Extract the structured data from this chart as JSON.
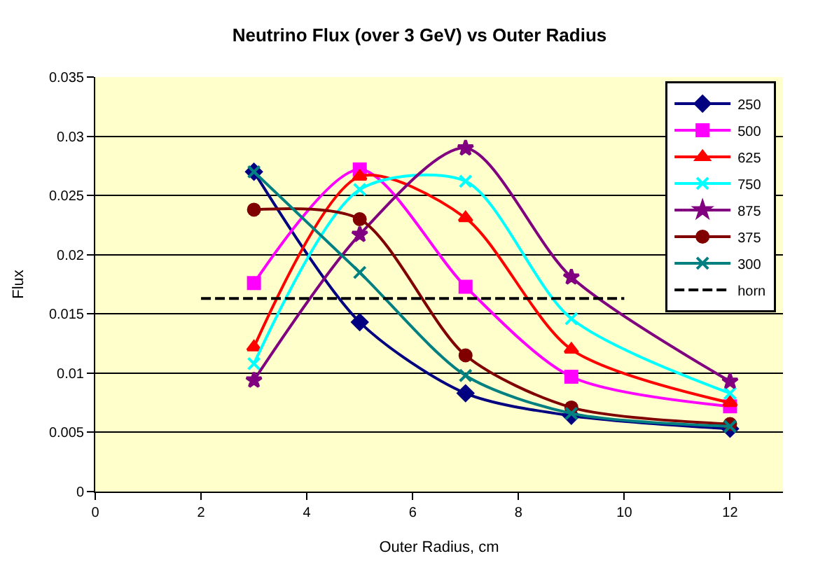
{
  "chart_data": {
    "type": "line",
    "title": "Neutrino Flux (over 3 GeV) vs Outer Radius",
    "xlabel": "Outer Radius, cm",
    "ylabel": "Flux",
    "x": [
      3,
      5,
      7,
      9,
      12
    ],
    "series": [
      {
        "name": "250",
        "color": "#000080",
        "marker": "diamond",
        "values": [
          0.027,
          0.0143,
          0.0083,
          0.0064,
          0.0053
        ]
      },
      {
        "name": "500",
        "color": "#ff00ff",
        "marker": "square",
        "values": [
          0.0176,
          0.0272,
          0.0173,
          0.0097,
          0.0072
        ]
      },
      {
        "name": "625",
        "color": "#ff0000",
        "marker": "triangle",
        "values": [
          0.0122,
          0.0266,
          0.0231,
          0.012,
          0.0075
        ]
      },
      {
        "name": "750",
        "color": "#00ffff",
        "marker": "cross",
        "values": [
          0.0108,
          0.0255,
          0.0262,
          0.0146,
          0.0083
        ]
      },
      {
        "name": "875",
        "color": "#800080",
        "marker": "star",
        "values": [
          0.0094,
          0.0217,
          0.029,
          0.0181,
          0.0093
        ]
      },
      {
        "name": "375",
        "color": "#800000",
        "marker": "circle",
        "values": [
          0.0238,
          0.023,
          0.0115,
          0.0071,
          0.0057
        ]
      },
      {
        "name": "300",
        "color": "#008080",
        "marker": "cross",
        "values": [
          0.027,
          0.0185,
          0.0098,
          0.0066,
          0.0055
        ]
      },
      {
        "name": "horn",
        "color": "#000000",
        "marker": "none",
        "line_style": "dashed",
        "x": [
          2,
          10
        ],
        "values": [
          0.0163,
          0.0163
        ]
      }
    ],
    "xlim": [
      0,
      13
    ],
    "xticks": [
      0,
      2,
      4,
      6,
      8,
      10,
      12
    ],
    "ylim": [
      0,
      0.035
    ],
    "yticks": [
      0,
      0.005,
      0.01,
      0.015,
      0.02,
      0.025,
      0.03,
      0.035
    ],
    "grid": "y",
    "legend": "top right"
  }
}
